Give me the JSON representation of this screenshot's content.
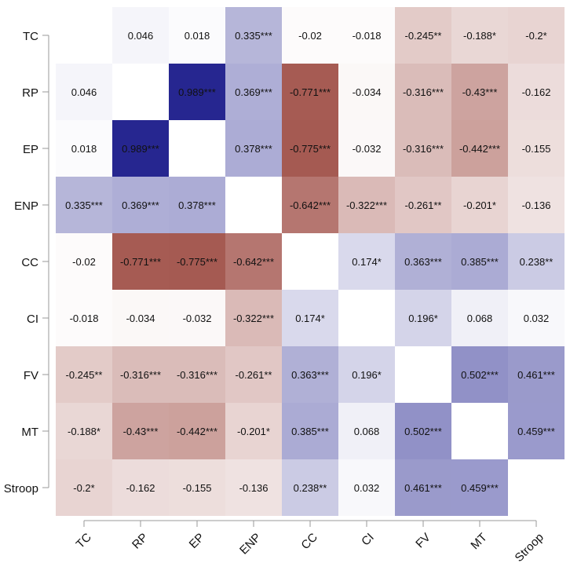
{
  "chart_data": {
    "type": "heatmap",
    "title": "",
    "xlabel": "",
    "ylabel": "",
    "variables": [
      "TC",
      "RP",
      "EP",
      "ENP",
      "CC",
      "CI",
      "FV",
      "MT",
      "Stroop"
    ],
    "matrix": [
      [
        null,
        0.046,
        0.018,
        0.335,
        -0.02,
        -0.018,
        -0.245,
        -0.188,
        -0.2
      ],
      [
        0.046,
        null,
        0.989,
        0.369,
        -0.771,
        -0.034,
        -0.316,
        -0.43,
        -0.162
      ],
      [
        0.018,
        0.989,
        null,
        0.378,
        -0.775,
        -0.032,
        -0.316,
        -0.442,
        -0.155
      ],
      [
        0.335,
        0.369,
        0.378,
        null,
        -0.642,
        -0.322,
        -0.261,
        -0.201,
        -0.136
      ],
      [
        -0.02,
        -0.771,
        -0.775,
        -0.642,
        null,
        0.174,
        0.363,
        0.385,
        0.238
      ],
      [
        -0.018,
        -0.034,
        -0.032,
        -0.322,
        0.174,
        null,
        0.196,
        0.068,
        0.032
      ],
      [
        -0.245,
        -0.316,
        -0.316,
        -0.261,
        0.363,
        0.196,
        null,
        0.502,
        0.461
      ],
      [
        -0.188,
        -0.43,
        -0.442,
        -0.201,
        0.385,
        0.068,
        0.502,
        null,
        0.459
      ],
      [
        -0.2,
        -0.162,
        -0.155,
        -0.136,
        0.238,
        0.032,
        0.461,
        0.459,
        null
      ]
    ],
    "labels": [
      [
        "",
        "0.046",
        "0.018",
        "0.335***",
        "-0.02",
        "-0.018",
        "-0.245**",
        "-0.188*",
        "-0.2*"
      ],
      [
        "0.046",
        "",
        "0.989***",
        "0.369***",
        "-0.771***",
        "-0.034",
        "-0.316***",
        "-0.43***",
        "-0.162"
      ],
      [
        "0.018",
        "0.989***",
        "",
        "0.378***",
        "-0.775***",
        "-0.032",
        "-0.316***",
        "-0.442***",
        "-0.155"
      ],
      [
        "0.335***",
        "0.369***",
        "0.378***",
        "",
        "-0.642***",
        "-0.322***",
        "-0.261**",
        "-0.201*",
        "-0.136"
      ],
      [
        "-0.02",
        "-0.771***",
        "-0.775***",
        "-0.642***",
        "",
        "0.174*",
        "0.363***",
        "0.385***",
        "0.238**"
      ],
      [
        "-0.018",
        "-0.034",
        "-0.032",
        "-0.322***",
        "0.174*",
        "",
        "0.196*",
        "0.068",
        "0.032"
      ],
      [
        "-0.245**",
        "-0.316***",
        "-0.316***",
        "-0.261**",
        "0.363***",
        "0.196*",
        "",
        "0.502***",
        "0.461***"
      ],
      [
        "-0.188*",
        "-0.43***",
        "-0.442***",
        "-0.201*",
        "0.385***",
        "0.068",
        "0.502***",
        "",
        "0.459***"
      ],
      [
        "-0.2*",
        "-0.162",
        "-0.155",
        "-0.136",
        "0.238**",
        "0.032",
        "0.461***",
        "0.459***",
        ""
      ]
    ],
    "color_scale": {
      "positive": "#24248f",
      "negative": "#8b2a20",
      "zero": "#ffffff",
      "range": [
        -1,
        1
      ]
    },
    "diagonal": "blank",
    "grid": false,
    "legend": "none"
  }
}
